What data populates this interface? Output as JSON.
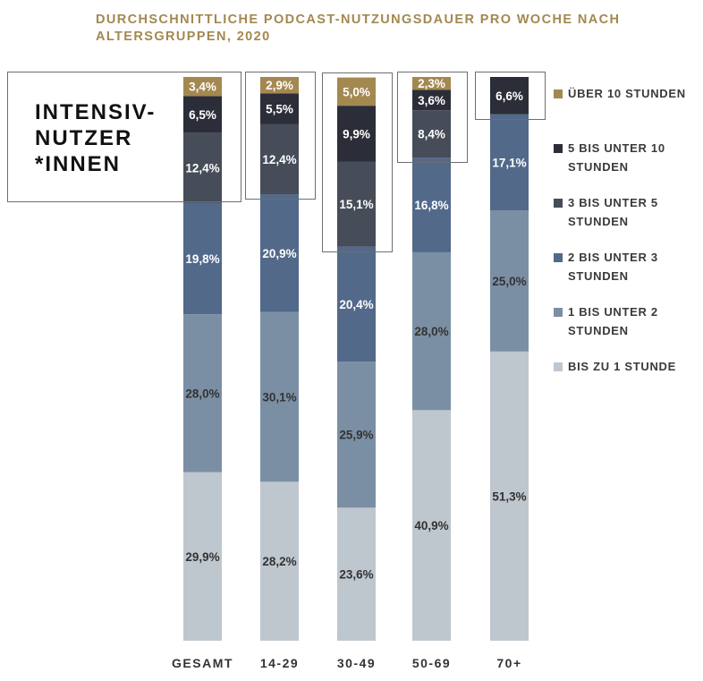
{
  "title": "DURCHSCHNITTLICHE PODCAST-NUTZUNGSDAUER PRO WOCHE NACH ALTERSGRUPPEN, 2020",
  "highlight_label": "INTENSIV-NUTZER *INNEN",
  "legend_position": "right",
  "colors": {
    "ueber10": "#a38850",
    "5bis10": "#2b2e38",
    "3bis5": "#464c58",
    "2bis3": "#52698a",
    "1bis2": "#7b8fa4",
    "bis1": "#bec6ce"
  },
  "chart_data": {
    "type": "bar",
    "stacked": true,
    "categories": [
      "GESAMT",
      "14-29",
      "30-49",
      "50-69",
      "70+"
    ],
    "series": [
      {
        "name": "BIS ZU 1 STUNDE",
        "color_key": "bis1",
        "values": [
          29.9,
          28.2,
          23.6,
          40.9,
          51.3
        ],
        "labels": [
          "29,9%",
          "28,2%",
          "23,6%",
          "40,9%",
          "51,3%"
        ]
      },
      {
        "name": "1 BIS UNTER 2 STUNDEN",
        "color_key": "1bis2",
        "values": [
          28.0,
          30.1,
          25.9,
          28.0,
          25.0
        ],
        "labels": [
          "28,0%",
          "30,1%",
          "25,9%",
          "28,0%",
          "25,0%"
        ]
      },
      {
        "name": "2 BIS UNTER 3 STUNDEN",
        "color_key": "2bis3",
        "values": [
          19.8,
          20.9,
          20.4,
          16.8,
          17.1
        ],
        "labels": [
          "19,8%",
          "20,9%",
          "20,4%",
          "16,8%",
          "17,1%"
        ]
      },
      {
        "name": "3 BIS UNTER 5 STUNDEN",
        "color_key": "3bis5",
        "values": [
          12.4,
          12.4,
          15.1,
          8.4,
          0
        ],
        "labels": [
          "12,4%",
          "12,4%",
          "15,1%",
          "8,4%",
          ""
        ]
      },
      {
        "name": "5 BIS UNTER 10 STUNDEN",
        "color_key": "5bis10",
        "values": [
          6.5,
          5.5,
          9.9,
          3.6,
          6.6
        ],
        "labels": [
          "6,5%",
          "5,5%",
          "9,9%",
          "3,6%",
          "6,6%"
        ]
      },
      {
        "name": "ÜBER 10 STUNDEN",
        "color_key": "ueber10",
        "values": [
          3.4,
          2.9,
          5.0,
          2.3,
          0
        ],
        "labels": [
          "3,4%",
          "2,9%",
          "5,0%",
          "2,3%",
          ""
        ]
      }
    ],
    "legend_order": [
      "ÜBER 10 STUNDEN",
      "5 BIS UNTER 10 STUNDEN",
      "3 BIS UNTER 5 STUNDEN",
      "2 BIS UNTER 3 STUNDEN",
      "1 BIS UNTER 2 STUNDEN",
      "BIS ZU 1 STUNDE"
    ],
    "highlighted_segments": [
      {
        "category": "14-29",
        "series": [
          "ÜBER 10 STUNDEN",
          "5 BIS UNTER 10 STUNDEN",
          "3 BIS UNTER 5 STUNDEN"
        ]
      },
      {
        "category": "30-49",
        "series": [
          "ÜBER 10 STUNDEN",
          "5 BIS UNTER 10 STUNDEN",
          "3 BIS UNTER 5 STUNDEN"
        ]
      },
      {
        "category": "50-69",
        "series": [
          "ÜBER 10 STUNDEN",
          "5 BIS UNTER 10 STUNDEN",
          "3 BIS UNTER 5 STUNDEN"
        ]
      },
      {
        "category": "70+",
        "series": [
          "5 BIS UNTER 10 STUNDEN"
        ]
      }
    ]
  }
}
